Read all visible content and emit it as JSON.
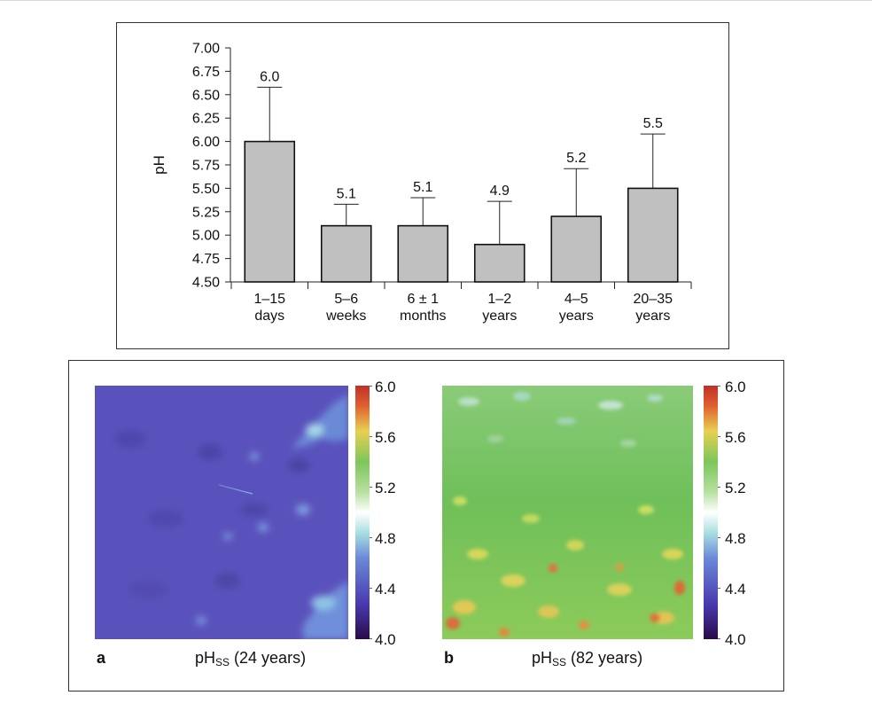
{
  "chart_data": [
    {
      "type": "bar",
      "categories": [
        [
          "1–15",
          "days"
        ],
        [
          "5–6",
          "weeks"
        ],
        [
          "6 ± 1",
          "months"
        ],
        [
          "1–2",
          "years"
        ],
        [
          "4–5",
          "years"
        ],
        [
          "20–35",
          "years"
        ]
      ],
      "values": [
        6.0,
        5.1,
        5.1,
        4.9,
        5.2,
        5.5
      ],
      "value_labels": [
        "6.0",
        "5.1",
        "5.1",
        "4.9",
        "5.2",
        "5.5"
      ],
      "error_upper": [
        6.58,
        5.33,
        5.4,
        5.36,
        5.71,
        6.08
      ],
      "ylabel": "pH",
      "ylim": [
        4.5,
        7.0
      ],
      "yticks": [
        "4.50",
        "4.75",
        "5.00",
        "5.25",
        "5.50",
        "5.75",
        "6.00",
        "6.25",
        "6.50",
        "6.75",
        "7.00"
      ],
      "bar_color": "#c0c0c0",
      "grid": false
    },
    {
      "type": "heatmap",
      "panel": "a",
      "caption": {
        "main": "pH",
        "sub": "SS",
        "rest": " (24 years)"
      },
      "colorbar": {
        "ticks": [
          "6.0",
          "5.6",
          "5.2",
          "4.8",
          "4.4",
          "4.0"
        ],
        "range": [
          4.0,
          6.0
        ]
      },
      "dominant_color": "#5a52bc"
    },
    {
      "type": "heatmap",
      "panel": "b",
      "caption": {
        "main": "pH",
        "sub": "SS",
        "rest": " (82 years)"
      },
      "colorbar": {
        "ticks": [
          "6.0",
          "5.6",
          "5.2",
          "4.8",
          "4.4",
          "4.0"
        ],
        "range": [
          4.0,
          6.0
        ]
      },
      "dominant_color": "#7cc65a"
    }
  ],
  "colors": {
    "bar_fill": "#c0c0c0",
    "frame": "#333333",
    "colorbar_stops": [
      "#2a0a4a",
      "#4a3ab0",
      "#6a8ad8",
      "#a8e0e0",
      "#ffffff",
      "#b8e0a0",
      "#7cc65a",
      "#e8d050",
      "#e06030",
      "#c03028"
    ]
  }
}
